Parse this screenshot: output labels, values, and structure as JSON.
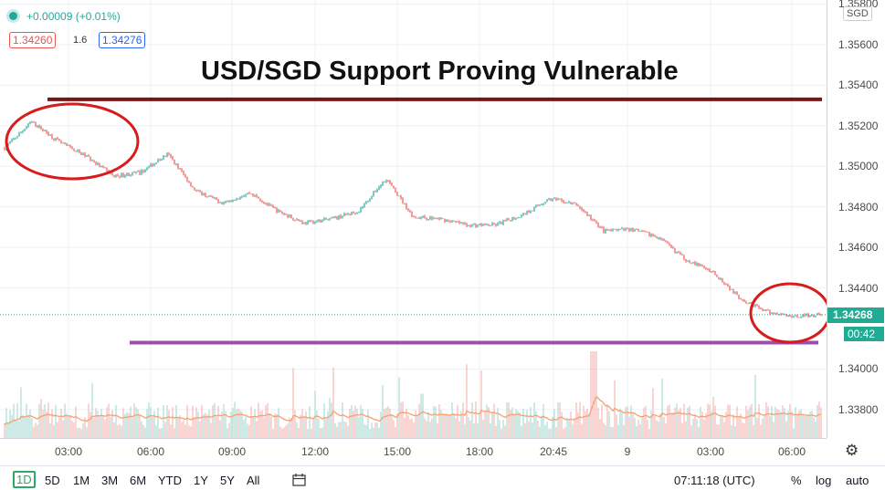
{
  "header": {
    "change_text": "+0.00009 (+0.01%)",
    "bid": "1.34260",
    "spread": "1.6",
    "ask": "1.34276",
    "title": "USD/SGD Support Proving Vulnerable"
  },
  "price_axis": {
    "currency": "SGD",
    "ticks": [
      "1.35800",
      "1.35600",
      "1.35400",
      "1.35200",
      "1.35000",
      "1.34800",
      "1.34600",
      "1.34400",
      "1.34000",
      "1.33800"
    ],
    "last_price": "1.34268",
    "countdown": "00:42"
  },
  "time_axis": {
    "ticks": [
      "03:00",
      "06:00",
      "09:00",
      "12:00",
      "15:00",
      "18:00",
      "20:45",
      "9",
      "03:00",
      "06:00"
    ]
  },
  "bottom_bar": {
    "ranges": [
      "1D",
      "5D",
      "1M",
      "3M",
      "6M",
      "YTD",
      "1Y",
      "5Y",
      "All"
    ],
    "active_range": "1D",
    "clock": "07:11:18 (UTC)",
    "percent_label": "%",
    "log_label": "log",
    "auto_label": "auto"
  },
  "colors": {
    "up": "#26a69a",
    "down": "#ef5350",
    "resistance_line": "#7b1416",
    "support_line": "#9b4fa8",
    "highlight_circle": "#d81c1c",
    "volume_ma": "#f7a072"
  },
  "chart_data": {
    "type": "line",
    "title": "USD/SGD Support Proving Vulnerable",
    "ylim": [
      1.3366,
      1.3582
    ],
    "x": [
      "01:00",
      "02:00",
      "03:00",
      "04:00",
      "05:00",
      "06:00",
      "07:00",
      "08:00",
      "09:00",
      "10:00",
      "11:00",
      "12:00",
      "13:00",
      "14:00",
      "15:00",
      "16:00",
      "17:00",
      "18:00",
      "19:00",
      "20:00",
      "21:00",
      "22:00",
      "23:00",
      "00:00",
      "01:00",
      "02:00",
      "03:00",
      "04:00",
      "05:00",
      "06:00",
      "07:00"
    ],
    "series": [
      {
        "values": [
          1.3509,
          1.3522,
          1.3512,
          1.3505,
          1.3495,
          1.3497,
          1.3506,
          1.3488,
          1.3482,
          1.3487,
          1.3478,
          1.3472,
          1.3474,
          1.3478,
          1.3494,
          1.3475,
          1.3474,
          1.3471,
          1.3471,
          1.3476,
          1.3484,
          1.3481,
          1.3468,
          1.3469,
          1.3465,
          1.3454,
          1.3448,
          1.3435,
          1.3428,
          1.3426,
          1.3427
        ]
      }
    ],
    "annotations": [
      {
        "type": "hline",
        "color": "#7b1416",
        "value": 1.3533
      },
      {
        "type": "hline",
        "color": "#9b4fa8",
        "value": 1.3413
      },
      {
        "type": "ellipse",
        "color": "#d81c1c"
      },
      {
        "type": "ellipse",
        "color": "#d81c1c"
      }
    ],
    "grid": true
  }
}
